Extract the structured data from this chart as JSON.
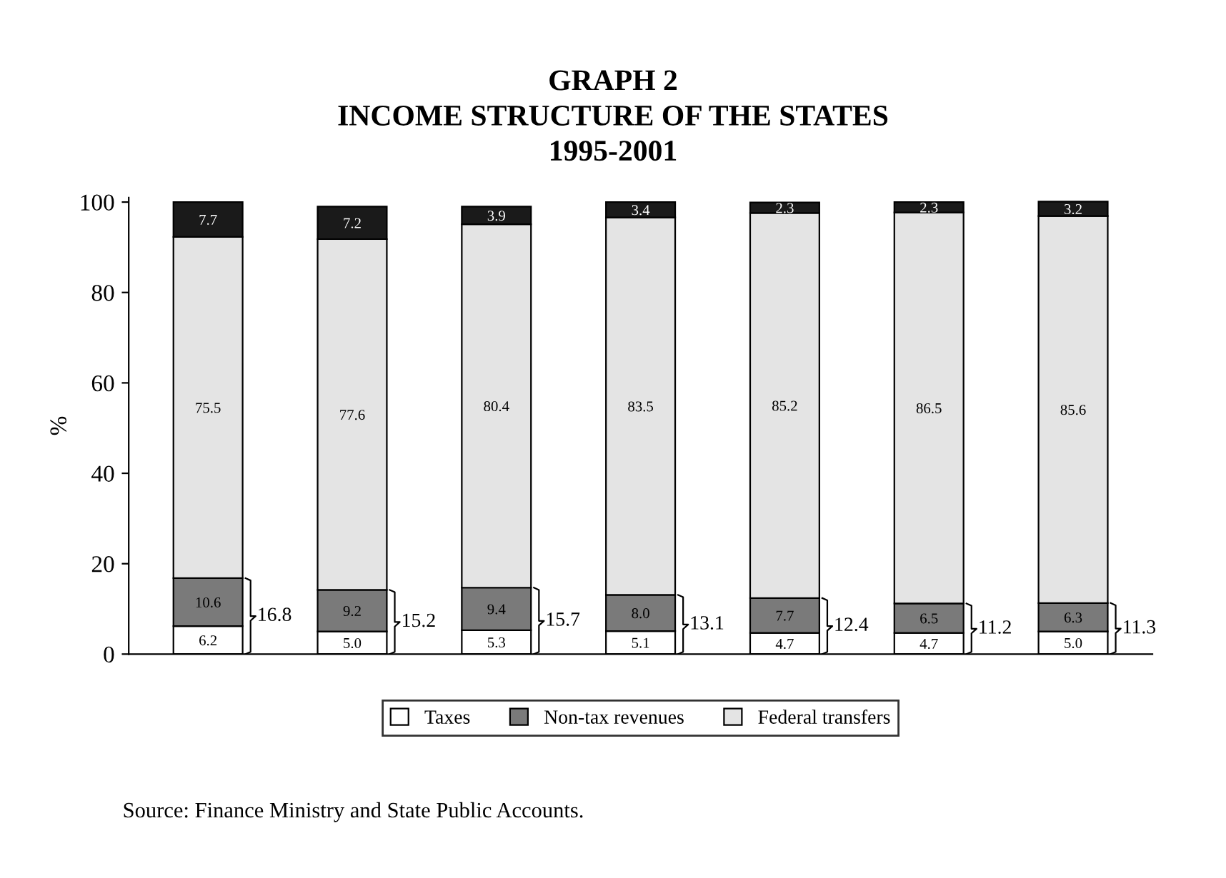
{
  "chart_data": {
    "type": "bar",
    "title": "GRAPH 2\nINCOME STRUCTURE OF THE STATES\n1995-2001",
    "ylabel": "%",
    "categories": [
      null,
      null,
      null,
      null,
      null,
      null,
      null
    ],
    "stacked": true,
    "legend": "bottom",
    "grid": false,
    "ylim": [
      0,
      101
    ],
    "yticks": [
      0,
      20,
      40,
      60,
      80,
      100
    ],
    "series": [
      {
        "name": "Taxes",
        "color": "#ffffff",
        "values": [
          6.2,
          5.0,
          5.3,
          5.1,
          4.7,
          4.7,
          5.0
        ],
        "value_labels": [
          "6.2",
          "5.0",
          "5.3",
          "5.1",
          "4.7",
          "4.7",
          "5.0"
        ]
      },
      {
        "name": "Non-tax revenues",
        "color": "#7a7a7a",
        "values": [
          10.6,
          9.2,
          9.4,
          8.0,
          7.7,
          6.5,
          6.3
        ],
        "value_labels": [
          "10.6",
          "9.2",
          "9.4",
          "8.0",
          "7.7",
          "6.5",
          "6.3"
        ]
      },
      {
        "name": "Federal transfers",
        "color": "#e4e4e4",
        "values": [
          75.5,
          77.6,
          80.4,
          83.5,
          85.2,
          86.5,
          85.6
        ],
        "value_labels": [
          "75.5",
          "77.6",
          "80.4",
          "83.5",
          "85.2",
          "86.5",
          "85.6"
        ]
      },
      {
        "color": "#1a1a1a",
        "values": [
          7.7,
          7.2,
          3.9,
          3.4,
          2.3,
          2.3,
          3.2
        ],
        "value_labels": [
          "7.7",
          "7.2",
          "3.9",
          "3.4",
          "2.3",
          "2.3",
          "3.2"
        ]
      }
    ],
    "annotations": [
      "16.8",
      "15.2",
      "15.7",
      "13.1",
      "12.4",
      "11.2",
      "11.3",
      "Source: Finance Ministry and State Public Accounts."
    ]
  }
}
